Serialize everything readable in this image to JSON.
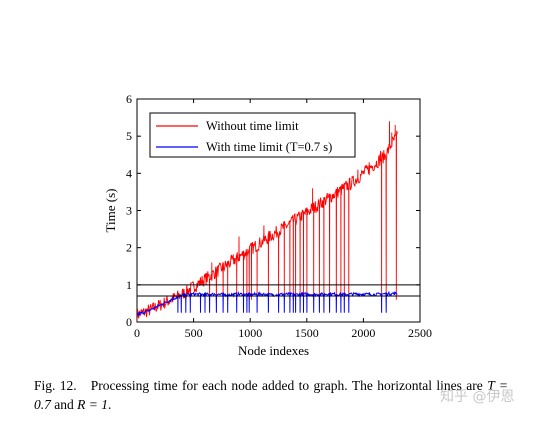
{
  "chart_data": {
    "type": "line",
    "xlabel": "Node indexes",
    "ylabel": "Time (s)",
    "xlim": [
      0,
      2500
    ],
    "ylim": [
      0,
      6
    ],
    "xticks": [
      "0",
      "500",
      "1000",
      "1500",
      "2000",
      "2500"
    ],
    "yticks": [
      "0",
      "1",
      "2",
      "3",
      "4",
      "5",
      "6"
    ],
    "legend_position": "top-left",
    "series": [
      {
        "name": "Without time limit",
        "color": "#ff0000",
        "x": [
          0,
          100,
          200,
          300,
          400,
          500,
          600,
          700,
          800,
          900,
          1000,
          1100,
          1200,
          1300,
          1400,
          1500,
          1600,
          1700,
          1800,
          1900,
          2000,
          2100,
          2200,
          2250,
          2300
        ],
        "values": [
          0.2,
          0.3,
          0.45,
          0.6,
          0.75,
          0.95,
          1.15,
          1.35,
          1.55,
          1.75,
          1.95,
          2.15,
          2.35,
          2.55,
          2.75,
          2.95,
          3.15,
          3.35,
          3.55,
          3.75,
          4.0,
          4.25,
          4.5,
          4.8,
          5.0
        ],
        "drops_to": 0.6,
        "drop_x": [
          430,
          470,
          640,
          700,
          760,
          800,
          880,
          940,
          970,
          990,
          1010,
          1060,
          1160,
          1250,
          1300,
          1350,
          1380,
          1400,
          1440,
          1470,
          1500,
          1560,
          1610,
          1650,
          1700,
          1760,
          1800,
          1830,
          1870,
          2160,
          2200,
          2290
        ],
        "spike_x": [
          660,
          900,
          1120,
          1550,
          1950,
          2050,
          2150,
          2230,
          2250,
          2280
        ],
        "spike_to": [
          1.6,
          2.3,
          2.6,
          3.6,
          4.1,
          4.3,
          4.6,
          5.4,
          5.1,
          5.3
        ]
      },
      {
        "name": "With time limit (T=0.7 s)",
        "color": "#0000ff",
        "x": [
          0,
          100,
          200,
          300,
          400,
          500,
          600,
          700,
          800,
          900,
          1000,
          1100,
          1200,
          1300,
          1400,
          1500,
          1600,
          1700,
          1800,
          1900,
          2000,
          2100,
          2200,
          2300
        ],
        "values": [
          0.2,
          0.3,
          0.45,
          0.6,
          0.72,
          0.75,
          0.74,
          0.75,
          0.73,
          0.75,
          0.74,
          0.75,
          0.73,
          0.75,
          0.74,
          0.75,
          0.74,
          0.76,
          0.74,
          0.75,
          0.75,
          0.74,
          0.76,
          0.77
        ],
        "drop_x": [
          360,
          390,
          430,
          470,
          560,
          600,
          640,
          700,
          760,
          800,
          880,
          940,
          970,
          990,
          1060,
          1160,
          1250,
          1300,
          1350,
          1380,
          1400,
          1440,
          1470,
          1500,
          1560,
          1610,
          1650,
          1700,
          1760,
          1800,
          1830,
          1870,
          2160,
          2200
        ],
        "drops_to": 0.25
      }
    ],
    "horizontal_lines": [
      0.7,
      1.0
    ]
  },
  "caption": {
    "label": "Fig. 12.",
    "text_before": "Processing time for each node added to graph. The horizontal lines are ",
    "T_eq": "T = 0.7",
    "and": " and ",
    "R_eq": "R = 1",
    "period": "."
  },
  "watermark": "知乎 @伊恩"
}
